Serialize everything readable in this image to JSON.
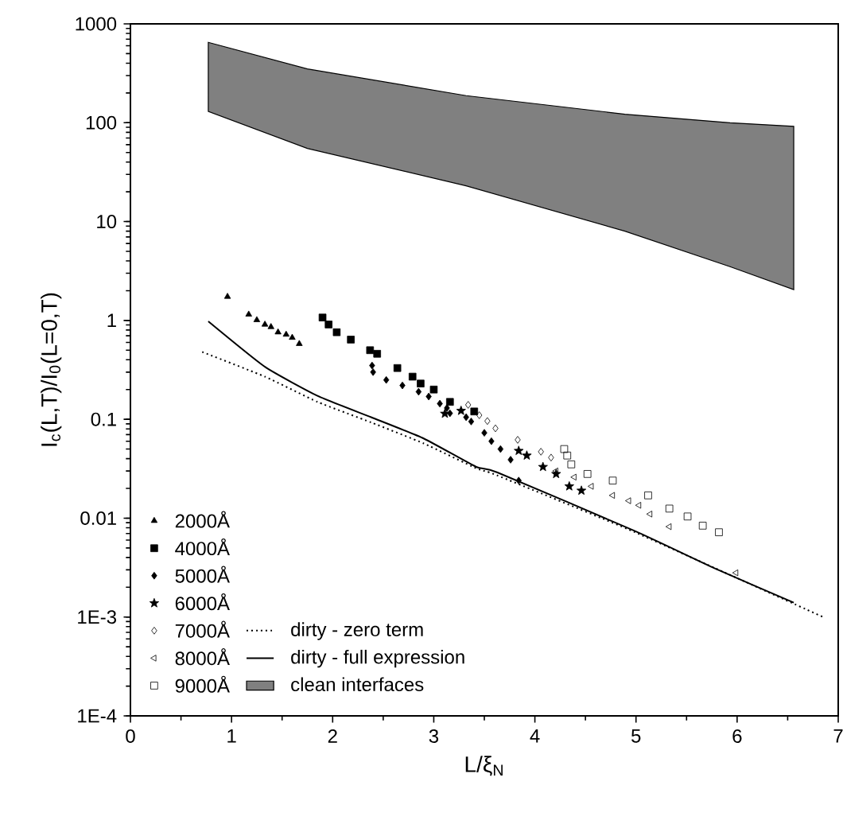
{
  "chart_data": {
    "type": "scatter",
    "xlabel": "L/ξ$_{N}$",
    "ylabel": "I$_{c}$(L,T)/I$_{0}$(L=0,T)",
    "xlim": [
      0,
      7
    ],
    "xticks": [
      0,
      1,
      2,
      3,
      4,
      5,
      6,
      7
    ],
    "ylim": [
      0.0001,
      1000
    ],
    "yticks": [
      {
        "value": 0.0001,
        "label": "1E-4"
      },
      {
        "value": 0.001,
        "label": "1E-3"
      },
      0.01,
      0.1,
      1,
      10,
      100,
      1000
    ],
    "log": "y",
    "legend": "bottom left",
    "series": [
      {
        "name": "2000Å",
        "marker": "triangle",
        "color": "#000000",
        "x": [
          0.96,
          1.17,
          1.25,
          1.33,
          1.39,
          1.46,
          1.54,
          1.6,
          1.67
        ],
        "values": [
          1.74,
          1.15,
          1.01,
          0.91,
          0.86,
          0.76,
          0.72,
          0.67,
          0.58
        ]
      },
      {
        "name": "4000Å",
        "marker": "square",
        "color": "#000000",
        "x": [
          1.9,
          1.96,
          2.04,
          2.18,
          2.37,
          2.44,
          2.64,
          2.79,
          2.87,
          3.0,
          3.16,
          3.4
        ],
        "values": [
          1.07,
          0.91,
          0.76,
          0.64,
          0.5,
          0.46,
          0.33,
          0.27,
          0.23,
          0.2,
          0.15,
          0.12
        ]
      },
      {
        "name": "5000Å",
        "marker": "diamond",
        "color": "#000000",
        "x": [
          2.39,
          2.4,
          2.53,
          2.69,
          2.85,
          2.95,
          3.06,
          3.13,
          3.16,
          3.32,
          3.37,
          3.5,
          3.57,
          3.66,
          3.76,
          3.84
        ],
        "values": [
          0.35,
          0.3,
          0.25,
          0.22,
          0.19,
          0.17,
          0.144,
          0.13,
          0.115,
          0.105,
          0.095,
          0.073,
          0.06,
          0.05,
          0.039,
          0.024
        ]
      },
      {
        "name": "6000Å",
        "marker": "star",
        "color": "#000000",
        "x": [
          3.11,
          3.27,
          3.84,
          3.92,
          4.08,
          4.21,
          4.34,
          4.46
        ],
        "values": [
          0.114,
          0.122,
          0.048,
          0.043,
          0.033,
          0.028,
          0.021,
          0.019
        ]
      },
      {
        "name": "7000Å",
        "marker": "diamond",
        "color": "#000000",
        "x": [
          3.34,
          3.45,
          3.53,
          3.61,
          3.83,
          4.06,
          4.16
        ],
        "values": [
          0.14,
          0.11,
          0.096,
          0.081,
          0.062,
          0.047,
          0.041
        ]
      },
      {
        "name": "8000Å",
        "marker": "triangle",
        "color": "#000000",
        "x": [
          4.21,
          4.39,
          4.56,
          4.77,
          4.93,
          5.03,
          5.14,
          5.33,
          5.99
        ],
        "values": [
          0.03,
          0.026,
          0.021,
          0.017,
          0.015,
          0.0135,
          0.011,
          0.0082,
          0.0028
        ]
      },
      {
        "name": "9000Å",
        "marker": "square",
        "color": "#000000",
        "x": [
          4.29,
          4.32,
          4.36,
          4.52,
          4.77,
          5.12,
          5.33,
          5.51,
          5.66,
          5.82
        ],
        "values": [
          0.05,
          0.043,
          0.035,
          0.028,
          0.024,
          0.017,
          0.0125,
          0.0104,
          0.0084,
          0.0072
        ]
      },
      {
        "name": "dirty - zero term",
        "type": "line",
        "line_style": "dotted",
        "color": "#000000",
        "x": [
          0.71,
          1.33,
          1.85,
          2.38,
          2.9,
          3.42,
          3.63,
          4.99,
          6.85
        ],
        "values": [
          0.48,
          0.27,
          0.15,
          0.093,
          0.057,
          0.032,
          0.027,
          0.0072,
          0.001
        ]
      },
      {
        "name": "dirty - full expression",
        "type": "line",
        "line_style": "solid",
        "color": "#000000",
        "x": [
          0.77,
          1.33,
          1.85,
          2.38,
          2.9,
          3.42,
          3.63,
          4.99,
          5.78,
          6.56
        ],
        "values": [
          0.98,
          0.34,
          0.173,
          0.105,
          0.064,
          0.033,
          0.029,
          0.0074,
          0.0031,
          0.0014
        ]
      },
      {
        "name": "clean interfaces",
        "type": "area",
        "color": "#808080",
        "x": [
          0.77,
          1.75,
          3.32,
          4.89,
          5.93,
          6.56
        ],
        "values": [
          null,
          null,
          null,
          null,
          null,
          null
        ],
        "lower": [
          130,
          55,
          23,
          8,
          3.5,
          2.05
        ],
        "upper": [
          650,
          350,
          188,
          122,
          100,
          92
        ]
      }
    ]
  }
}
